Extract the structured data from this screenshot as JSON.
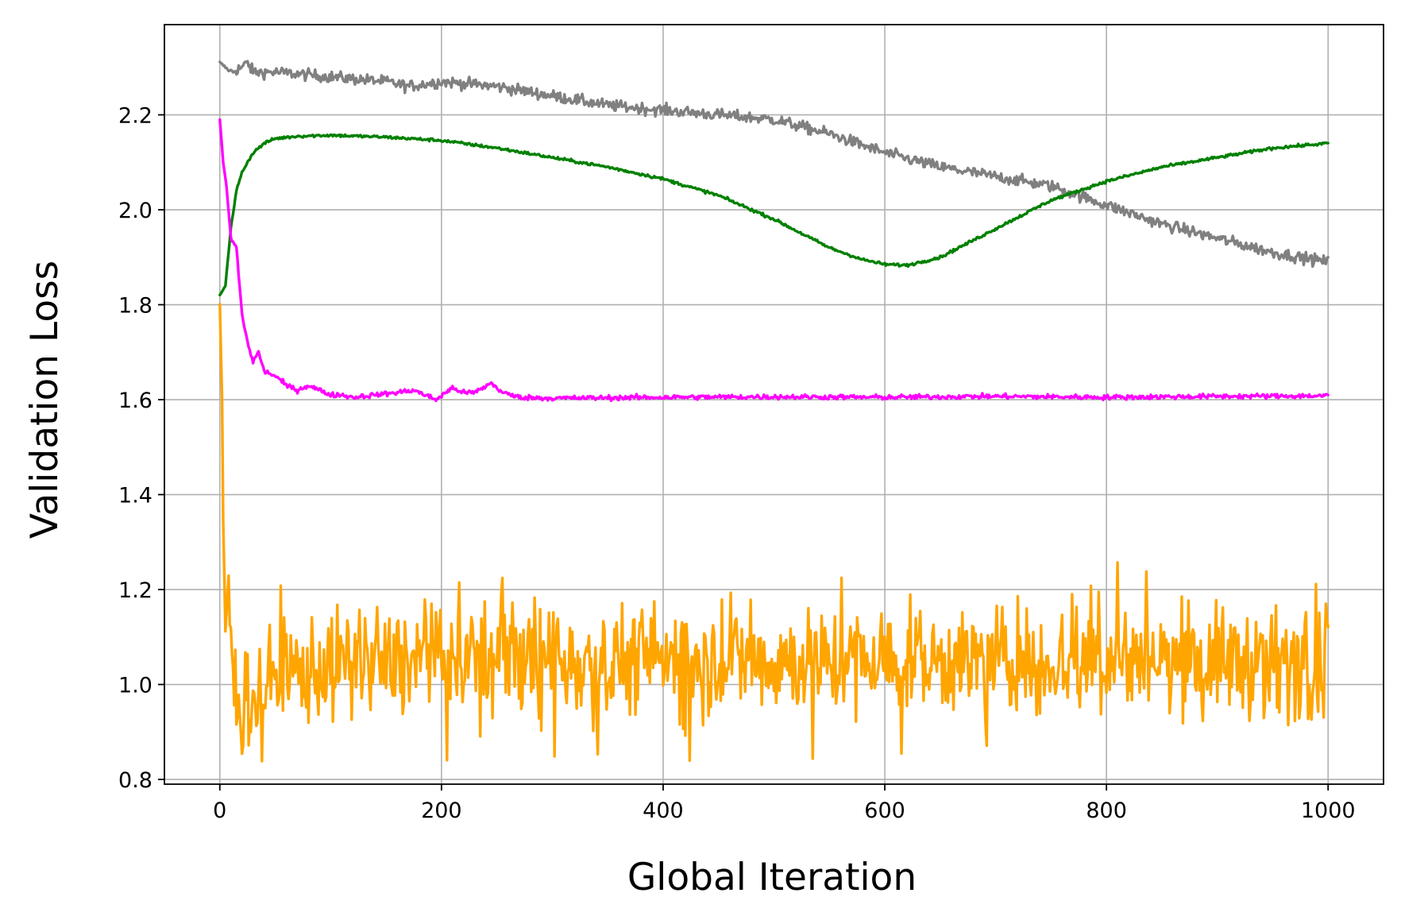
{
  "chart_data": {
    "type": "line",
    "title": "",
    "xlabel": "Global Iteration",
    "ylabel": "Validation Loss",
    "xlim": [
      -50,
      1050
    ],
    "ylim": [
      0.79,
      2.39
    ],
    "xticks": [
      0,
      200,
      400,
      600,
      800,
      1000
    ],
    "yticks": [
      0.8,
      1.0,
      1.2,
      1.4,
      1.6,
      1.8,
      2.0,
      2.2
    ],
    "xtick_labels": [
      "0",
      "200",
      "400",
      "600",
      "800",
      "1000"
    ],
    "ytick_labels": [
      "0.8",
      "1.0",
      "1.2",
      "1.4",
      "1.6",
      "1.8",
      "2.0",
      "2.2"
    ],
    "grid": true,
    "legend": "none",
    "series": [
      {
        "color": "#808080",
        "noise": 0.006,
        "x": [
          0,
          5,
          10,
          20,
          25,
          30,
          50,
          100,
          150,
          170,
          200,
          250,
          300,
          350,
          400,
          450,
          500,
          550,
          600,
          650,
          700,
          750,
          800,
          850,
          900,
          950,
          1000
        ],
        "y": [
          2.31,
          2.3,
          2.29,
          2.3,
          2.31,
          2.29,
          2.29,
          2.28,
          2.27,
          2.26,
          2.27,
          2.26,
          2.24,
          2.22,
          2.21,
          2.2,
          2.19,
          2.16,
          2.12,
          2.09,
          2.07,
          2.05,
          2.01,
          1.97,
          1.94,
          1.91,
          1.89
        ]
      },
      {
        "color": "#008000",
        "noise": 0.0015,
        "x": [
          0,
          5,
          10,
          15,
          20,
          30,
          40,
          50,
          70,
          100,
          150,
          200,
          250,
          300,
          350,
          400,
          450,
          500,
          550,
          580,
          600,
          620,
          650,
          700,
          750,
          800,
          850,
          900,
          950,
          1000
        ],
        "y": [
          1.82,
          1.84,
          1.96,
          2.04,
          2.08,
          2.12,
          2.14,
          2.15,
          2.155,
          2.157,
          2.153,
          2.146,
          2.13,
          2.11,
          2.09,
          2.065,
          2.03,
          1.98,
          1.92,
          1.895,
          1.885,
          1.883,
          1.9,
          1.96,
          2.02,
          2.06,
          2.09,
          2.11,
          2.13,
          2.14
        ]
      },
      {
        "color": "#ff00ff",
        "noise": 0.0025,
        "x": [
          0,
          3,
          6,
          10,
          15,
          20,
          25,
          30,
          35,
          40,
          50,
          60,
          70,
          80,
          90,
          100,
          110,
          120,
          140,
          160,
          175,
          185,
          195,
          210,
          220,
          230,
          245,
          255,
          270,
          300,
          400,
          500,
          600,
          700,
          800,
          900,
          1000
        ],
        "y": [
          2.19,
          2.1,
          2.05,
          1.94,
          1.92,
          1.78,
          1.72,
          1.68,
          1.7,
          1.66,
          1.65,
          1.63,
          1.62,
          1.63,
          1.62,
          1.61,
          1.61,
          1.605,
          1.61,
          1.615,
          1.62,
          1.61,
          1.6,
          1.625,
          1.615,
          1.615,
          1.635,
          1.615,
          1.605,
          1.603,
          1.605,
          1.606,
          1.605,
          1.607,
          1.605,
          1.607,
          1.608
        ]
      },
      {
        "color": "#ffa500",
        "noise": 0.055,
        "spike_count": 48,
        "x": [
          0,
          2,
          3,
          5,
          8,
          10,
          15,
          20,
          25,
          30,
          40,
          60,
          100,
          200,
          300,
          400,
          500,
          600,
          700,
          800,
          900,
          1000
        ],
        "y": [
          1.8,
          1.6,
          1.35,
          1.12,
          1.22,
          1.05,
          0.97,
          0.96,
          0.99,
          0.97,
          1.0,
          1.02,
          1.04,
          1.05,
          1.05,
          1.055,
          1.05,
          1.05,
          1.05,
          1.05,
          1.05,
          1.04
        ]
      }
    ]
  }
}
